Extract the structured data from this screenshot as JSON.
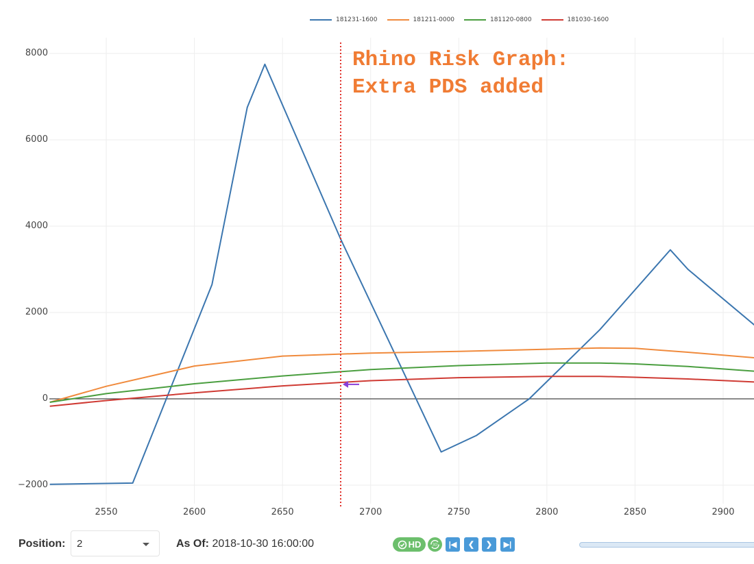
{
  "chart_data": {
    "type": "line",
    "title": "",
    "xlabel": "",
    "ylabel": "",
    "xlim": [
      2518,
      2918
    ],
    "ylim": [
      -2200,
      8100
    ],
    "grid": true,
    "legend_position": "top",
    "x_ticks": [
      2550,
      2600,
      2650,
      2700,
      2750,
      2800,
      2850,
      2900
    ],
    "y_ticks": [
      -2000,
      0,
      2000,
      4000,
      6000,
      8000
    ],
    "x_tick_labels": [
      "2550",
      "2600",
      "2650",
      "2700",
      "2750",
      "2800",
      "2850",
      "2900"
    ],
    "y_tick_labels": [
      "−2000",
      "0",
      "2000",
      "4000",
      "6000",
      "8000"
    ],
    "series": [
      {
        "name": "181231-1600",
        "color": "#3b76af",
        "x": [
          2518,
          2565,
          2610,
          2630,
          2640,
          2683,
          2740,
          2760,
          2790,
          2830,
          2870,
          2880,
          2918
        ],
        "y": [
          -1980,
          -1950,
          2650,
          6750,
          7750,
          3700,
          -1230,
          -850,
          0,
          1600,
          3450,
          3000,
          1700
        ]
      },
      {
        "name": "181211-0000",
        "color": "#f08a3c",
        "x": [
          2518,
          2550,
          2600,
          2650,
          2700,
          2750,
          2800,
          2830,
          2850,
          2880,
          2918
        ],
        "y": [
          -80,
          290,
          760,
          990,
          1060,
          1100,
          1150,
          1180,
          1170,
          1080,
          950
        ]
      },
      {
        "name": "181120-0800",
        "color": "#4a9e3f",
        "x": [
          2518,
          2550,
          2600,
          2650,
          2700,
          2750,
          2800,
          2830,
          2850,
          2880,
          2918
        ],
        "y": [
          -80,
          120,
          350,
          530,
          680,
          770,
          830,
          830,
          810,
          750,
          640
        ]
      },
      {
        "name": "181030-1600",
        "color": "#cf3a33",
        "x": [
          2518,
          2550,
          2600,
          2650,
          2700,
          2750,
          2800,
          2830,
          2850,
          2880,
          2918
        ],
        "y": [
          -170,
          -40,
          140,
          300,
          420,
          490,
          520,
          520,
          500,
          460,
          390
        ]
      }
    ],
    "annotations": [
      {
        "type": "vertical-line",
        "x": 2683,
        "color": "#e0302a",
        "style": "dotted"
      },
      {
        "type": "text",
        "text": "Rhino Risk Graph:\nExtra PDS added",
        "color": "#f07c34"
      },
      {
        "type": "arrow",
        "x": 2683,
        "y": 320,
        "color": "#8a3fd8",
        "direction": "left"
      }
    ]
  },
  "legend": [
    {
      "label": "181231-1600",
      "color": "#3b76af"
    },
    {
      "label": "181211-0000",
      "color": "#f08a3c"
    },
    {
      "label": "181120-0800",
      "color": "#4a9e3f"
    },
    {
      "label": "181030-1600",
      "color": "#cf3a33"
    }
  ],
  "annotation_text": "Rhino Risk Graph:\nExtra PDS added",
  "footer": {
    "position_label": "Position:",
    "position_value": "2",
    "asof_label": "As Of:",
    "asof_value": "2018-10-30 16:00:00",
    "hd_label": "HD",
    "rotate_label": "3D"
  }
}
